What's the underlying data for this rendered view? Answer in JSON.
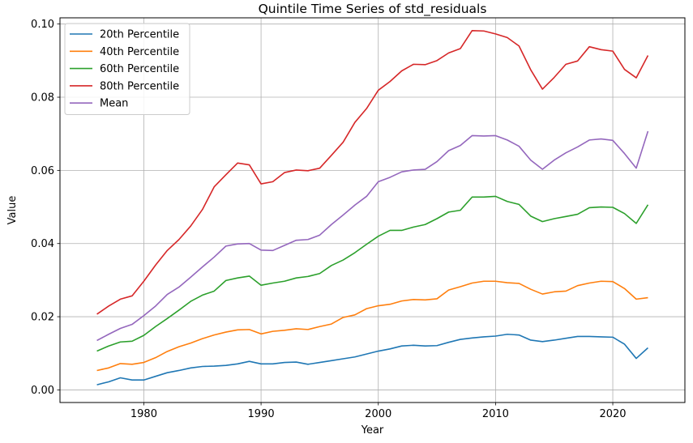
{
  "chart_data": {
    "type": "line",
    "title": "Quintile Time Series of std_residuals",
    "xlabel": "Year",
    "ylabel": "Value",
    "xlim": [
      1972.85,
      2026.15
    ],
    "ylim": [
      -0.00345,
      0.1017
    ],
    "xticks": [
      1980,
      1990,
      2000,
      2010,
      2020
    ],
    "xtick_labels": [
      "1980",
      "1990",
      "2000",
      "2010",
      "2020"
    ],
    "yticks": [
      0.0,
      0.02,
      0.04,
      0.06,
      0.08,
      0.1
    ],
    "ytick_labels": [
      "0.00",
      "0.02",
      "0.04",
      "0.06",
      "0.08",
      "0.10"
    ],
    "grid": true,
    "legend_position": "upper-left",
    "x": [
      1976,
      1977,
      1978,
      1979,
      1980,
      1981,
      1982,
      1983,
      1984,
      1985,
      1986,
      1987,
      1988,
      1989,
      1990,
      1991,
      1992,
      1993,
      1994,
      1995,
      1996,
      1997,
      1998,
      1999,
      2000,
      2001,
      2002,
      2003,
      2004,
      2005,
      2006,
      2007,
      2008,
      2009,
      2010,
      2011,
      2012,
      2013,
      2014,
      2015,
      2016,
      2017,
      2018,
      2019,
      2020,
      2021,
      2022,
      2023
    ],
    "series": [
      {
        "name": "20th Percentile",
        "color": "#1f77b4",
        "values": [
          0.0014,
          0.0022,
          0.0033,
          0.0027,
          0.0027,
          0.0037,
          0.0047,
          0.0053,
          0.006,
          0.0064,
          0.0065,
          0.0067,
          0.0071,
          0.0078,
          0.0071,
          0.0071,
          0.0075,
          0.0076,
          0.007,
          0.0075,
          0.008,
          0.0085,
          0.009,
          0.0098,
          0.0106,
          0.0112,
          0.012,
          0.0122,
          0.012,
          0.0121,
          0.013,
          0.0138,
          0.0142,
          0.0145,
          0.0147,
          0.0152,
          0.015,
          0.0136,
          0.0132,
          0.0136,
          0.0141,
          0.0146,
          0.0146,
          0.0145,
          0.0144,
          0.0125,
          0.0086,
          0.0115
        ]
      },
      {
        "name": "40th Percentile",
        "color": "#ff7f0e",
        "values": [
          0.0053,
          0.006,
          0.0072,
          0.007,
          0.0075,
          0.0088,
          0.0105,
          0.0118,
          0.0128,
          0.014,
          0.015,
          0.0158,
          0.0164,
          0.0165,
          0.0153,
          0.016,
          0.0163,
          0.0167,
          0.0165,
          0.0173,
          0.018,
          0.0198,
          0.0205,
          0.0222,
          0.023,
          0.0234,
          0.0243,
          0.0247,
          0.0246,
          0.0249,
          0.0273,
          0.0282,
          0.0292,
          0.0297,
          0.0297,
          0.0293,
          0.0291,
          0.0275,
          0.0262,
          0.0268,
          0.027,
          0.0285,
          0.0292,
          0.0297,
          0.0296,
          0.0277,
          0.0248,
          0.0252
        ]
      },
      {
        "name": "60th Percentile",
        "color": "#2ca02c",
        "values": [
          0.0106,
          0.012,
          0.0131,
          0.0133,
          0.0149,
          0.0173,
          0.0195,
          0.0218,
          0.0242,
          0.0259,
          0.027,
          0.0299,
          0.0306,
          0.0311,
          0.0286,
          0.0292,
          0.0297,
          0.0306,
          0.031,
          0.0318,
          0.034,
          0.0355,
          0.0375,
          0.0398,
          0.042,
          0.0436,
          0.0436,
          0.0445,
          0.0452,
          0.0468,
          0.0486,
          0.0491,
          0.0527,
          0.0527,
          0.0529,
          0.0515,
          0.0507,
          0.0475,
          0.046,
          0.0468,
          0.0474,
          0.048,
          0.0498,
          0.05,
          0.0499,
          0.0482,
          0.0455,
          0.0506
        ]
      },
      {
        "name": "80th Percentile",
        "color": "#d62728",
        "values": [
          0.0207,
          0.0229,
          0.0248,
          0.0257,
          0.0297,
          0.0341,
          0.0381,
          0.0411,
          0.0448,
          0.0493,
          0.0555,
          0.0588,
          0.062,
          0.0615,
          0.0563,
          0.0569,
          0.0594,
          0.0601,
          0.0599,
          0.0606,
          0.0641,
          0.0677,
          0.0731,
          0.0769,
          0.0819,
          0.0843,
          0.0872,
          0.089,
          0.0889,
          0.09,
          0.0921,
          0.0933,
          0.0982,
          0.0981,
          0.0973,
          0.0963,
          0.094,
          0.0875,
          0.0822,
          0.0854,
          0.089,
          0.0899,
          0.0938,
          0.093,
          0.0926,
          0.0876,
          0.0853,
          0.0914
        ]
      },
      {
        "name": "Mean",
        "color": "#9467bd",
        "values": [
          0.0135,
          0.0152,
          0.0168,
          0.0179,
          0.0203,
          0.0229,
          0.0261,
          0.0281,
          0.0308,
          0.0336,
          0.0363,
          0.0393,
          0.0399,
          0.04,
          0.0382,
          0.0381,
          0.0395,
          0.0409,
          0.0411,
          0.0423,
          0.0452,
          0.0478,
          0.0505,
          0.0529,
          0.0569,
          0.0581,
          0.0596,
          0.0601,
          0.0603,
          0.0624,
          0.0654,
          0.0668,
          0.0695,
          0.0694,
          0.0695,
          0.0683,
          0.0666,
          0.0628,
          0.0603,
          0.0628,
          0.0648,
          0.0664,
          0.0683,
          0.0686,
          0.0682,
          0.0646,
          0.0606,
          0.0707
        ]
      }
    ]
  }
}
